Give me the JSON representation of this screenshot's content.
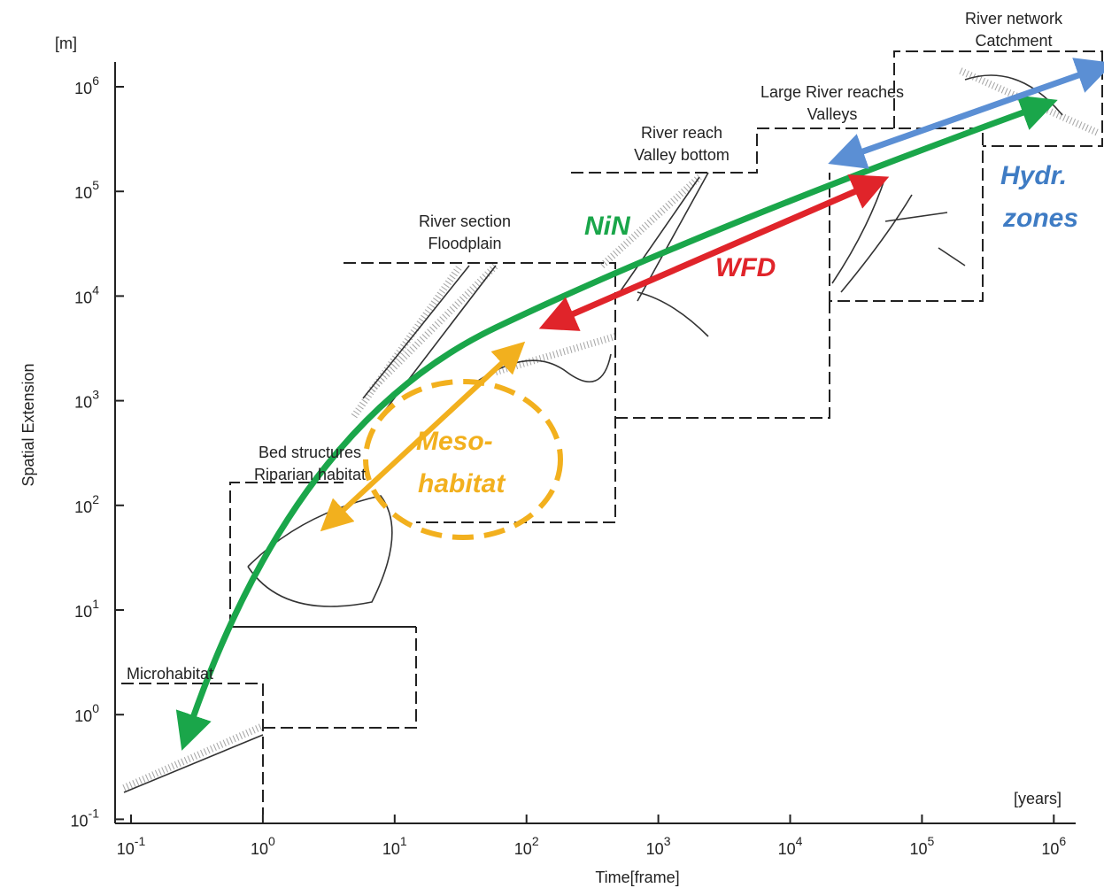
{
  "axes": {
    "y_unit": "[m]",
    "y_title": "Spatial Extension",
    "x_unit": "[years]",
    "x_title": "Time[frame]",
    "x_ticks": [
      {
        "base": "10",
        "exp": "-1"
      },
      {
        "base": "10",
        "exp": "0"
      },
      {
        "base": "10",
        "exp": "1"
      },
      {
        "base": "10",
        "exp": "2"
      },
      {
        "base": "10",
        "exp": "3"
      },
      {
        "base": "10",
        "exp": "4"
      },
      {
        "base": "10",
        "exp": "5"
      },
      {
        "base": "10",
        "exp": "6"
      }
    ],
    "y_ticks": [
      {
        "base": "10",
        "exp": "6"
      },
      {
        "base": "10",
        "exp": "5"
      },
      {
        "base": "10",
        "exp": "4"
      },
      {
        "base": "10",
        "exp": "3"
      },
      {
        "base": "10",
        "exp": "2"
      },
      {
        "base": "10",
        "exp": "1"
      },
      {
        "base": "10",
        "exp": "0"
      },
      {
        "base": "10",
        "exp": "-1"
      }
    ]
  },
  "boxes": [
    {
      "lines": [
        "Microhabitat"
      ]
    },
    {
      "lines": [
        "Bed structures",
        "Riparian habitat"
      ]
    },
    {
      "lines": [
        "River section",
        "Floodplain"
      ]
    },
    {
      "lines": [
        "River reach",
        "Valley bottom"
      ]
    },
    {
      "lines": [
        "Large River reaches",
        "Valleys"
      ]
    },
    {
      "lines": [
        "River network",
        "Catchment"
      ]
    }
  ],
  "annotations": {
    "nin": "NiN",
    "wfd": "WFD",
    "hydr": [
      "Hydr.",
      "zones"
    ],
    "meso": [
      "Meso-",
      "habitat"
    ]
  }
}
